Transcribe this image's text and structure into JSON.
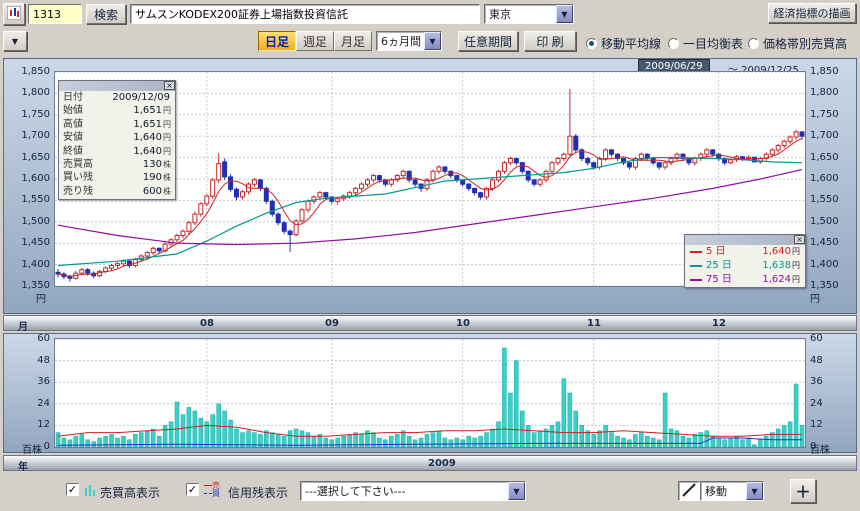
{
  "header": {
    "code_value": "1313",
    "search_label": "検索",
    "name_value": "サムスンKODEX200証券上場指数投資信託",
    "market_value": "東京",
    "economic_button": "経済指標の描画"
  },
  "icons": {
    "dropdown_arrow": "▼",
    "check": "✓",
    "plus": "＋",
    "close": "×"
  },
  "toolbar": {
    "tabs": [
      {
        "label": "日足",
        "selected": true
      },
      {
        "label": "週足",
        "selected": false
      },
      {
        "label": "月足",
        "selected": false
      }
    ],
    "period_value": "6ヵ月間",
    "range_button": "任意期間",
    "print_button": "印 刷",
    "radios": [
      {
        "label": "移動平均線",
        "selected": true
      },
      {
        "label": "一目均衡表",
        "selected": false
      },
      {
        "label": "価格帯別売買高",
        "selected": false
      }
    ]
  },
  "chart": {
    "date_range_start": "2009/06/29",
    "date_range_end": "～ 2009/12/25",
    "yen_label": "円",
    "volume_unit_label": "百株",
    "month_axis_label": "月",
    "year_axis_label": "年",
    "year_label": "2009",
    "tooltip": {
      "rows": [
        {
          "label": "日付",
          "value": "2009/12/09",
          "unit": ""
        },
        {
          "label": "始値",
          "value": "1,651",
          "unit": "円"
        },
        {
          "label": "高値",
          "value": "1,651",
          "unit": "円"
        },
        {
          "label": "安値",
          "value": "1,640",
          "unit": "円"
        },
        {
          "label": "終値",
          "value": "1,640",
          "unit": "円"
        },
        {
          "label": "売買高",
          "value": "130",
          "unit": "株"
        },
        {
          "label": "買い残",
          "value": "190",
          "unit": "株"
        },
        {
          "label": "売り残",
          "value": "600",
          "unit": "株"
        }
      ]
    },
    "legend": [
      {
        "label": "5 日",
        "value": "1,640",
        "unit": "円",
        "color": "#d02020"
      },
      {
        "label": "25 日",
        "value": "1,638",
        "unit": "円",
        "color": "#009890"
      },
      {
        "label": "75 日",
        "value": "1,624",
        "unit": "円",
        "color": "#9010a0"
      }
    ]
  },
  "bottom": {
    "volume_checkbox_label": "売買高表示",
    "credit_checkbox_label": "信用残表示",
    "credit_sell_label": "売",
    "credit_buy_label": "買",
    "select_placeholder": "---選択して下さい---",
    "move_value": "移動"
  },
  "chart_data": {
    "type": "candlestick",
    "title": "サムスンKODEX200証券上場指数投資信託 日足",
    "date_range": [
      "2009/06/29",
      "2009/12/25"
    ],
    "y_min": 1350,
    "y_max": 1850,
    "y_ticks": [
      1350,
      1400,
      1450,
      1500,
      1550,
      1600,
      1650,
      1700,
      1750,
      1800,
      1850
    ],
    "volume_max": 60,
    "volume_ticks": [
      0,
      12,
      24,
      36,
      48,
      60
    ],
    "month_ticks": [
      {
        "label": "08",
        "index": 25
      },
      {
        "label": "09",
        "index": 46
      },
      {
        "label": "10",
        "index": 68
      },
      {
        "label": "11",
        "index": 90
      },
      {
        "label": "12",
        "index": 111
      }
    ],
    "ohlcv": [
      [
        1382,
        1390,
        1370,
        1378,
        8
      ],
      [
        1378,
        1382,
        1366,
        1372,
        5
      ],
      [
        1372,
        1376,
        1360,
        1368,
        4
      ],
      [
        1368,
        1385,
        1365,
        1380,
        6
      ],
      [
        1380,
        1392,
        1376,
        1388,
        7
      ],
      [
        1388,
        1392,
        1374,
        1380,
        4
      ],
      [
        1380,
        1384,
        1368,
        1374,
        3
      ],
      [
        1374,
        1388,
        1370,
        1384,
        5
      ],
      [
        1384,
        1396,
        1380,
        1392,
        6
      ],
      [
        1392,
        1402,
        1386,
        1398,
        7
      ],
      [
        1398,
        1406,
        1392,
        1402,
        5
      ],
      [
        1402,
        1412,
        1396,
        1408,
        6
      ],
      [
        1408,
        1410,
        1392,
        1398,
        4
      ],
      [
        1398,
        1416,
        1394,
        1412,
        7
      ],
      [
        1412,
        1424,
        1406,
        1420,
        8
      ],
      [
        1420,
        1432,
        1414,
        1428,
        9
      ],
      [
        1428,
        1442,
        1422,
        1438,
        10
      ],
      [
        1438,
        1440,
        1426,
        1432,
        6
      ],
      [
        1432,
        1452,
        1428,
        1448,
        12
      ],
      [
        1448,
        1462,
        1442,
        1458,
        14
      ],
      [
        1458,
        1472,
        1452,
        1468,
        25
      ],
      [
        1468,
        1482,
        1462,
        1478,
        18
      ],
      [
        1478,
        1502,
        1472,
        1498,
        22
      ],
      [
        1498,
        1524,
        1492,
        1518,
        20
      ],
      [
        1518,
        1546,
        1512,
        1542,
        16
      ],
      [
        1542,
        1565,
        1536,
        1560,
        14
      ],
      [
        1560,
        1602,
        1554,
        1598,
        18
      ],
      [
        1598,
        1660,
        1590,
        1636,
        24
      ],
      [
        1640,
        1648,
        1598,
        1605,
        20
      ],
      [
        1605,
        1612,
        1570,
        1576,
        15
      ],
      [
        1576,
        1580,
        1550,
        1558,
        10
      ],
      [
        1558,
        1574,
        1552,
        1570,
        8
      ],
      [
        1570,
        1592,
        1564,
        1588,
        9
      ],
      [
        1588,
        1602,
        1582,
        1598,
        8
      ],
      [
        1598,
        1600,
        1572,
        1578,
        7
      ],
      [
        1578,
        1582,
        1542,
        1548,
        9
      ],
      [
        1548,
        1552,
        1512,
        1518,
        8
      ],
      [
        1518,
        1522,
        1492,
        1498,
        7
      ],
      [
        1498,
        1502,
        1472,
        1478,
        6
      ],
      [
        1478,
        1482,
        1430,
        1470,
        9
      ],
      [
        1470,
        1506,
        1466,
        1502,
        10
      ],
      [
        1502,
        1532,
        1498,
        1528,
        9
      ],
      [
        1528,
        1552,
        1522,
        1548,
        8
      ],
      [
        1548,
        1562,
        1542,
        1558,
        6
      ],
      [
        1558,
        1572,
        1552,
        1568,
        7
      ],
      [
        1568,
        1570,
        1552,
        1558,
        5
      ],
      [
        1558,
        1560,
        1542,
        1548,
        4
      ],
      [
        1548,
        1558,
        1540,
        1554,
        5
      ],
      [
        1554,
        1564,
        1548,
        1560,
        6
      ],
      [
        1560,
        1572,
        1554,
        1568,
        7
      ],
      [
        1568,
        1582,
        1562,
        1578,
        8
      ],
      [
        1578,
        1592,
        1572,
        1588,
        7
      ],
      [
        1588,
        1602,
        1582,
        1598,
        9
      ],
      [
        1598,
        1612,
        1592,
        1608,
        8
      ],
      [
        1608,
        1610,
        1592,
        1598,
        5
      ],
      [
        1598,
        1600,
        1582,
        1588,
        4
      ],
      [
        1588,
        1602,
        1582,
        1598,
        6
      ],
      [
        1598,
        1612,
        1592,
        1608,
        7
      ],
      [
        1608,
        1622,
        1602,
        1618,
        9
      ],
      [
        1618,
        1620,
        1592,
        1598,
        6
      ],
      [
        1598,
        1600,
        1582,
        1588,
        4
      ],
      [
        1588,
        1590,
        1570,
        1578,
        5
      ],
      [
        1578,
        1602,
        1572,
        1598,
        7
      ],
      [
        1598,
        1622,
        1592,
        1618,
        8
      ],
      [
        1618,
        1632,
        1612,
        1628,
        9
      ],
      [
        1628,
        1630,
        1612,
        1618,
        5
      ],
      [
        1618,
        1620,
        1602,
        1608,
        4
      ],
      [
        1608,
        1610,
        1592,
        1598,
        5
      ],
      [
        1598,
        1600,
        1582,
        1588,
        4
      ],
      [
        1588,
        1590,
        1572,
        1578,
        6
      ],
      [
        1578,
        1580,
        1562,
        1568,
        5
      ],
      [
        1568,
        1570,
        1552,
        1558,
        6
      ],
      [
        1558,
        1582,
        1552,
        1578,
        8
      ],
      [
        1578,
        1602,
        1572,
        1598,
        10
      ],
      [
        1598,
        1622,
        1592,
        1618,
        14
      ],
      [
        1618,
        1642,
        1612,
        1638,
        55
      ],
      [
        1638,
        1652,
        1632,
        1648,
        30
      ],
      [
        1648,
        1650,
        1632,
        1638,
        48
      ],
      [
        1638,
        1640,
        1612,
        1618,
        20
      ],
      [
        1618,
        1620,
        1592,
        1598,
        12
      ],
      [
        1598,
        1600,
        1582,
        1588,
        8
      ],
      [
        1588,
        1602,
        1582,
        1598,
        9
      ],
      [
        1598,
        1622,
        1592,
        1618,
        10
      ],
      [
        1618,
        1642,
        1612,
        1638,
        12
      ],
      [
        1638,
        1652,
        1632,
        1648,
        14
      ],
      [
        1648,
        1662,
        1642,
        1658,
        38
      ],
      [
        1658,
        1810,
        1650,
        1700,
        30
      ],
      [
        1700,
        1705,
        1660,
        1668,
        20
      ],
      [
        1668,
        1672,
        1642,
        1648,
        12
      ],
      [
        1648,
        1652,
        1632,
        1638,
        9
      ],
      [
        1638,
        1640,
        1622,
        1628,
        7
      ],
      [
        1628,
        1652,
        1622,
        1648,
        9
      ],
      [
        1648,
        1672,
        1642,
        1668,
        12
      ],
      [
        1668,
        1670,
        1652,
        1658,
        8
      ],
      [
        1658,
        1660,
        1642,
        1648,
        6
      ],
      [
        1648,
        1650,
        1632,
        1638,
        5
      ],
      [
        1638,
        1640,
        1622,
        1628,
        4
      ],
      [
        1628,
        1652,
        1622,
        1648,
        7
      ],
      [
        1648,
        1662,
        1642,
        1658,
        8
      ],
      [
        1658,
        1660,
        1642,
        1648,
        6
      ],
      [
        1648,
        1650,
        1632,
        1638,
        5
      ],
      [
        1638,
        1640,
        1622,
        1628,
        4
      ],
      [
        1628,
        1642,
        1622,
        1638,
        30
      ],
      [
        1638,
        1652,
        1632,
        1648,
        10
      ],
      [
        1648,
        1662,
        1642,
        1658,
        9
      ],
      [
        1658,
        1660,
        1642,
        1648,
        6
      ],
      [
        1648,
        1650,
        1632,
        1638,
        5
      ],
      [
        1638,
        1652,
        1632,
        1648,
        7
      ],
      [
        1648,
        1662,
        1642,
        1658,
        8
      ],
      [
        1658,
        1672,
        1652,
        1668,
        9
      ],
      [
        1668,
        1670,
        1652,
        1658,
        6
      ],
      [
        1658,
        1660,
        1642,
        1648,
        5
      ],
      [
        1648,
        1650,
        1632,
        1638,
        4
      ],
      [
        1638,
        1649,
        1634,
        1645,
        5
      ],
      [
        1645,
        1656,
        1640,
        1652,
        6
      ],
      [
        1652,
        1654,
        1642,
        1648,
        4
      ],
      [
        1648,
        1655,
        1644,
        1651,
        5
      ],
      [
        1651,
        1651,
        1640,
        1640,
        1.3
      ],
      [
        1640,
        1652,
        1636,
        1648,
        4
      ],
      [
        1648,
        1662,
        1642,
        1658,
        6
      ],
      [
        1658,
        1672,
        1652,
        1668,
        8
      ],
      [
        1668,
        1682,
        1662,
        1678,
        10
      ],
      [
        1678,
        1692,
        1672,
        1688,
        12
      ],
      [
        1688,
        1702,
        1682,
        1698,
        14
      ],
      [
        1698,
        1715,
        1692,
        1710,
        35
      ],
      [
        1710,
        1712,
        1692,
        1700,
        12
      ]
    ],
    "ma25_anchors": [
      [
        0,
        1398
      ],
      [
        10,
        1408
      ],
      [
        20,
        1425
      ],
      [
        25,
        1455
      ],
      [
        30,
        1490
      ],
      [
        35,
        1520
      ],
      [
        40,
        1545
      ],
      [
        45,
        1555
      ],
      [
        50,
        1560
      ],
      [
        55,
        1565
      ],
      [
        60,
        1580
      ],
      [
        65,
        1595
      ],
      [
        70,
        1600
      ],
      [
        75,
        1605
      ],
      [
        80,
        1610
      ],
      [
        85,
        1615
      ],
      [
        90,
        1625
      ],
      [
        95,
        1640
      ],
      [
        100,
        1650
      ],
      [
        105,
        1650
      ],
      [
        110,
        1648
      ],
      [
        115,
        1645
      ],
      [
        120,
        1640
      ],
      [
        125,
        1638
      ]
    ],
    "ma75_anchors": [
      [
        0,
        1492
      ],
      [
        10,
        1468
      ],
      [
        20,
        1450
      ],
      [
        30,
        1447
      ],
      [
        40,
        1450
      ],
      [
        50,
        1460
      ],
      [
        60,
        1475
      ],
      [
        70,
        1495
      ],
      [
        80,
        1515
      ],
      [
        90,
        1535
      ],
      [
        100,
        1555
      ],
      [
        110,
        1578
      ],
      [
        118,
        1600
      ],
      [
        125,
        1622
      ]
    ],
    "credit_red_anchors": [
      [
        0,
        6
      ],
      [
        5,
        8
      ],
      [
        10,
        8
      ],
      [
        15,
        9
      ],
      [
        20,
        10
      ],
      [
        25,
        12
      ],
      [
        30,
        11
      ],
      [
        35,
        8
      ],
      [
        40,
        6
      ],
      [
        45,
        6
      ],
      [
        50,
        7
      ],
      [
        55,
        8
      ],
      [
        60,
        8
      ],
      [
        65,
        9
      ],
      [
        70,
        9
      ],
      [
        75,
        10
      ],
      [
        80,
        9
      ],
      [
        85,
        8
      ],
      [
        90,
        8
      ],
      [
        95,
        9
      ],
      [
        100,
        8
      ],
      [
        105,
        7
      ],
      [
        110,
        6
      ],
      [
        115,
        6
      ],
      [
        120,
        7
      ],
      [
        125,
        7
      ]
    ],
    "credit_blue_anchors": [
      [
        0,
        1
      ],
      [
        20,
        1.5
      ],
      [
        40,
        1
      ],
      [
        60,
        1.5
      ],
      [
        80,
        2
      ],
      [
        100,
        2
      ],
      [
        108,
        2
      ],
      [
        110,
        5
      ],
      [
        115,
        5
      ],
      [
        120,
        4
      ],
      [
        125,
        4
      ]
    ],
    "colors": {
      "up": "#c42828",
      "down": "#2030b0",
      "ma5": "#d02020",
      "ma25": "#009890",
      "ma75": "#9010a0",
      "volume": "#38d0c8",
      "credit_sell": "#d02020",
      "credit_buy": "#2030c0",
      "grid": "#c4c8d2"
    }
  }
}
